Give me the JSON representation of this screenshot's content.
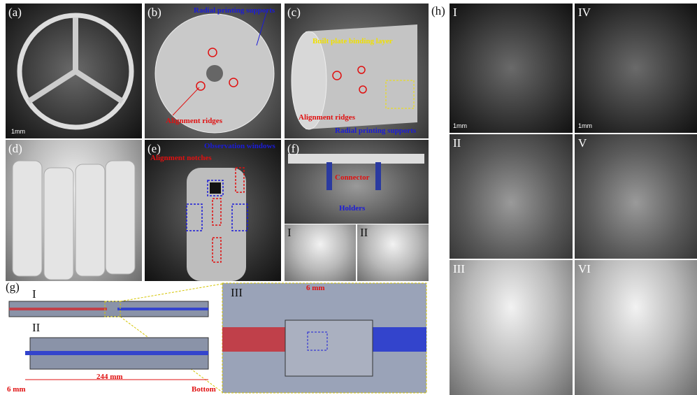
{
  "panels": [
    {
      "label": "(a)",
      "scale_bar": "1mm"
    },
    {
      "label": "(b)",
      "annotations": [
        "Radial printing supports",
        "Alignment ridges"
      ]
    },
    {
      "label": "(c)",
      "annotations": [
        "Built plate binding layer",
        "Alignment ridges",
        "Radial printing supports"
      ]
    },
    {
      "label": "(d)"
    },
    {
      "label": "(e)",
      "annotations": [
        "Observation windows",
        "Alignment notches"
      ]
    },
    {
      "label": "(f)",
      "annotations": [
        "Connector",
        "Holders"
      ],
      "insets": [
        "I",
        "II"
      ]
    },
    {
      "label": "(g)",
      "subpanels": [
        "I",
        "II",
        "III"
      ],
      "dimensions": [
        "6 mm",
        "244 mm",
        "6 mm"
      ],
      "annotations": [
        "Bottom"
      ]
    },
    {
      "label": "(h)",
      "subpanels": [
        {
          "label": "I",
          "scale_bar": "1mm"
        },
        {
          "label": "IV",
          "scale_bar": "1mm"
        },
        {
          "label": "II"
        },
        {
          "label": "V"
        },
        {
          "label": "III"
        },
        {
          "label": "VI"
        }
      ]
    }
  ]
}
